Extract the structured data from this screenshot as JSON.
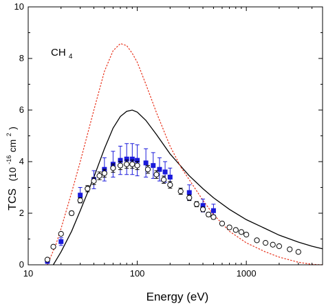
{
  "chart_data": {
    "type": "scatter",
    "xlabel": "Energy (eV)",
    "ylabel": {
      "main": "TCS",
      "unit_open": "(10",
      "unit_exp": "-16",
      "unit_mid": "cm",
      "unit_sq": "2",
      "unit_close": ")"
    },
    "annotation": {
      "text": "CH",
      "subscript": "4"
    },
    "x_scale": "log",
    "xlim": [
      10,
      5000
    ],
    "ylim": [
      0,
      10
    ],
    "x_ticks": [
      {
        "value": 10,
        "label": "10"
      },
      {
        "value": 100,
        "label": "100"
      },
      {
        "value": 1000,
        "label": "1000"
      }
    ],
    "y_ticks": [
      {
        "value": 0,
        "label": "0"
      },
      {
        "value": 2,
        "label": "2"
      },
      {
        "value": 4,
        "label": "4"
      },
      {
        "value": 6,
        "label": "6"
      },
      {
        "value": 8,
        "label": "8"
      },
      {
        "value": 10,
        "label": "10"
      }
    ],
    "grid": false,
    "legend": "none",
    "series": [
      {
        "style": "filled-square",
        "color": "#1a1adb",
        "points": [
          {
            "x": 15,
            "y": 0.15,
            "err": 0.1
          },
          {
            "x": 20,
            "y": 0.9,
            "err": 0.15
          },
          {
            "x": 30,
            "y": 2.7,
            "err": 0.3
          },
          {
            "x": 40,
            "y": 3.3,
            "err": 0.35
          },
          {
            "x": 50,
            "y": 3.7,
            "err": 0.45
          },
          {
            "x": 60,
            "y": 3.9,
            "err": 0.5
          },
          {
            "x": 70,
            "y": 4.05,
            "err": 0.55
          },
          {
            "x": 80,
            "y": 4.1,
            "err": 0.6
          },
          {
            "x": 90,
            "y": 4.1,
            "err": 0.6
          },
          {
            "x": 100,
            "y": 4.05,
            "err": 0.6
          },
          {
            "x": 120,
            "y": 3.95,
            "err": 0.55
          },
          {
            "x": 140,
            "y": 3.85,
            "err": 0.5
          },
          {
            "x": 160,
            "y": 3.7,
            "err": 0.45
          },
          {
            "x": 180,
            "y": 3.6,
            "err": 0.4
          },
          {
            "x": 200,
            "y": 3.4,
            "err": 0.35
          },
          {
            "x": 300,
            "y": 2.8,
            "err": 0.3
          },
          {
            "x": 400,
            "y": 2.3,
            "err": 0.25
          },
          {
            "x": 500,
            "y": 2.1,
            "err": 0.25
          }
        ]
      },
      {
        "style": "open-circle",
        "color": "#000000",
        "points": [
          {
            "x": 15,
            "y": 0.2,
            "err": 0.05
          },
          {
            "x": 17,
            "y": 0.7,
            "err": 0.05
          },
          {
            "x": 20,
            "y": 1.2,
            "err": 0.05
          },
          {
            "x": 25,
            "y": 2.0,
            "err": 0.08
          },
          {
            "x": 30,
            "y": 2.5,
            "err": 0.1
          },
          {
            "x": 35,
            "y": 2.95,
            "err": 0.12
          },
          {
            "x": 40,
            "y": 3.25,
            "err": 0.14
          },
          {
            "x": 45,
            "y": 3.45,
            "err": 0.15
          },
          {
            "x": 50,
            "y": 3.55,
            "err": 0.15
          },
          {
            "x": 60,
            "y": 3.75,
            "err": 0.16
          },
          {
            "x": 70,
            "y": 3.85,
            "err": 0.16
          },
          {
            "x": 80,
            "y": 3.9,
            "err": 0.16
          },
          {
            "x": 90,
            "y": 3.9,
            "err": 0.16
          },
          {
            "x": 100,
            "y": 3.85,
            "err": 0.16
          },
          {
            "x": 125,
            "y": 3.7,
            "err": 0.15
          },
          {
            "x": 150,
            "y": 3.5,
            "err": 0.15
          },
          {
            "x": 175,
            "y": 3.3,
            "err": 0.14
          },
          {
            "x": 200,
            "y": 3.1,
            "err": 0.13
          },
          {
            "x": 250,
            "y": 2.85,
            "err": 0.12
          },
          {
            "x": 300,
            "y": 2.6,
            "err": 0.11
          },
          {
            "x": 350,
            "y": 2.35,
            "err": 0.1
          },
          {
            "x": 400,
            "y": 2.15,
            "err": 0.09
          },
          {
            "x": 450,
            "y": 1.95,
            "err": 0.08
          },
          {
            "x": 500,
            "y": 1.85,
            "err": 0.08
          },
          {
            "x": 600,
            "y": 1.6,
            "err": 0.07
          },
          {
            "x": 700,
            "y": 1.45,
            "err": 0.07
          },
          {
            "x": 800,
            "y": 1.35,
            "err": 0.06
          },
          {
            "x": 900,
            "y": 1.27,
            "err": 0.06
          },
          {
            "x": 1000,
            "y": 1.17,
            "err": 0.06
          },
          {
            "x": 1250,
            "y": 0.95,
            "err": 0.06
          },
          {
            "x": 1500,
            "y": 0.85,
            "err": 0.05
          },
          {
            "x": 1750,
            "y": 0.78,
            "err": 0.05
          },
          {
            "x": 2000,
            "y": 0.72,
            "err": 0.05
          },
          {
            "x": 2500,
            "y": 0.6,
            "err": 0.05
          },
          {
            "x": 3000,
            "y": 0.5,
            "err": 0.05
          }
        ]
      },
      {
        "style": "solid-line",
        "color": "#000000",
        "points": [
          {
            "x": 17,
            "y": 0.0
          },
          {
            "x": 20,
            "y": 0.5
          },
          {
            "x": 25,
            "y": 1.3
          },
          {
            "x": 30,
            "y": 2.1
          },
          {
            "x": 40,
            "y": 3.4
          },
          {
            "x": 50,
            "y": 4.5
          },
          {
            "x": 60,
            "y": 5.3
          },
          {
            "x": 70,
            "y": 5.75
          },
          {
            "x": 80,
            "y": 5.95
          },
          {
            "x": 90,
            "y": 6.0
          },
          {
            "x": 100,
            "y": 5.92
          },
          {
            "x": 120,
            "y": 5.6
          },
          {
            "x": 150,
            "y": 5.05
          },
          {
            "x": 200,
            "y": 4.3
          },
          {
            "x": 300,
            "y": 3.45
          },
          {
            "x": 400,
            "y": 2.95
          },
          {
            "x": 500,
            "y": 2.6
          },
          {
            "x": 700,
            "y": 2.15
          },
          {
            "x": 1000,
            "y": 1.75
          },
          {
            "x": 1500,
            "y": 1.4
          },
          {
            "x": 2000,
            "y": 1.15
          },
          {
            "x": 3000,
            "y": 0.88
          },
          {
            "x": 4000,
            "y": 0.72
          },
          {
            "x": 5000,
            "y": 0.62
          }
        ]
      },
      {
        "style": "dotted-line",
        "color": "#e8311a",
        "points": [
          {
            "x": 15,
            "y": 0.0
          },
          {
            "x": 18,
            "y": 0.8
          },
          {
            "x": 20,
            "y": 1.4
          },
          {
            "x": 25,
            "y": 2.8
          },
          {
            "x": 30,
            "y": 4.0
          },
          {
            "x": 40,
            "y": 6.0
          },
          {
            "x": 50,
            "y": 7.5
          },
          {
            "x": 60,
            "y": 8.3
          },
          {
            "x": 70,
            "y": 8.58
          },
          {
            "x": 80,
            "y": 8.5
          },
          {
            "x": 90,
            "y": 8.2
          },
          {
            "x": 100,
            "y": 7.85
          },
          {
            "x": 120,
            "y": 7.0
          },
          {
            "x": 150,
            "y": 5.9
          },
          {
            "x": 200,
            "y": 4.6
          },
          {
            "x": 250,
            "y": 3.8
          },
          {
            "x": 300,
            "y": 3.3
          },
          {
            "x": 400,
            "y": 2.5
          },
          {
            "x": 500,
            "y": 1.95
          },
          {
            "x": 700,
            "y": 1.3
          },
          {
            "x": 1000,
            "y": 0.85
          },
          {
            "x": 1500,
            "y": 0.5
          },
          {
            "x": 2000,
            "y": 0.3
          },
          {
            "x": 3000,
            "y": 0.1
          },
          {
            "x": 4000,
            "y": 0.02
          },
          {
            "x": 5000,
            "y": 0.0
          }
        ]
      }
    ]
  }
}
